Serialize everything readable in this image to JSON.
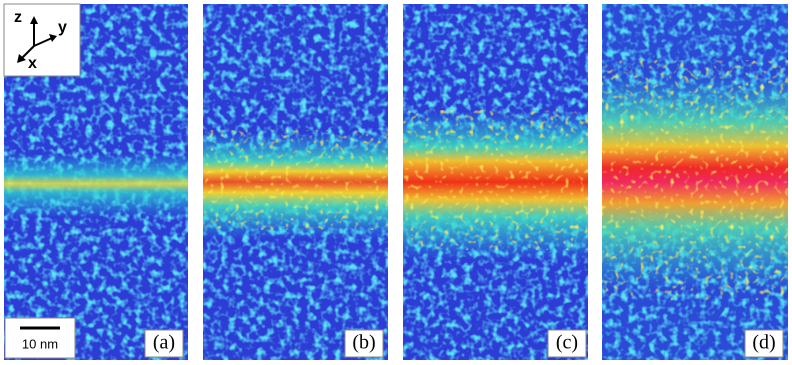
{
  "axes_labels": {
    "z": "z",
    "y": "y",
    "x": "x"
  },
  "scale_bar": "10 nm",
  "panels": [
    "(a)",
    "(b)",
    "(c)",
    "(d)"
  ]
}
